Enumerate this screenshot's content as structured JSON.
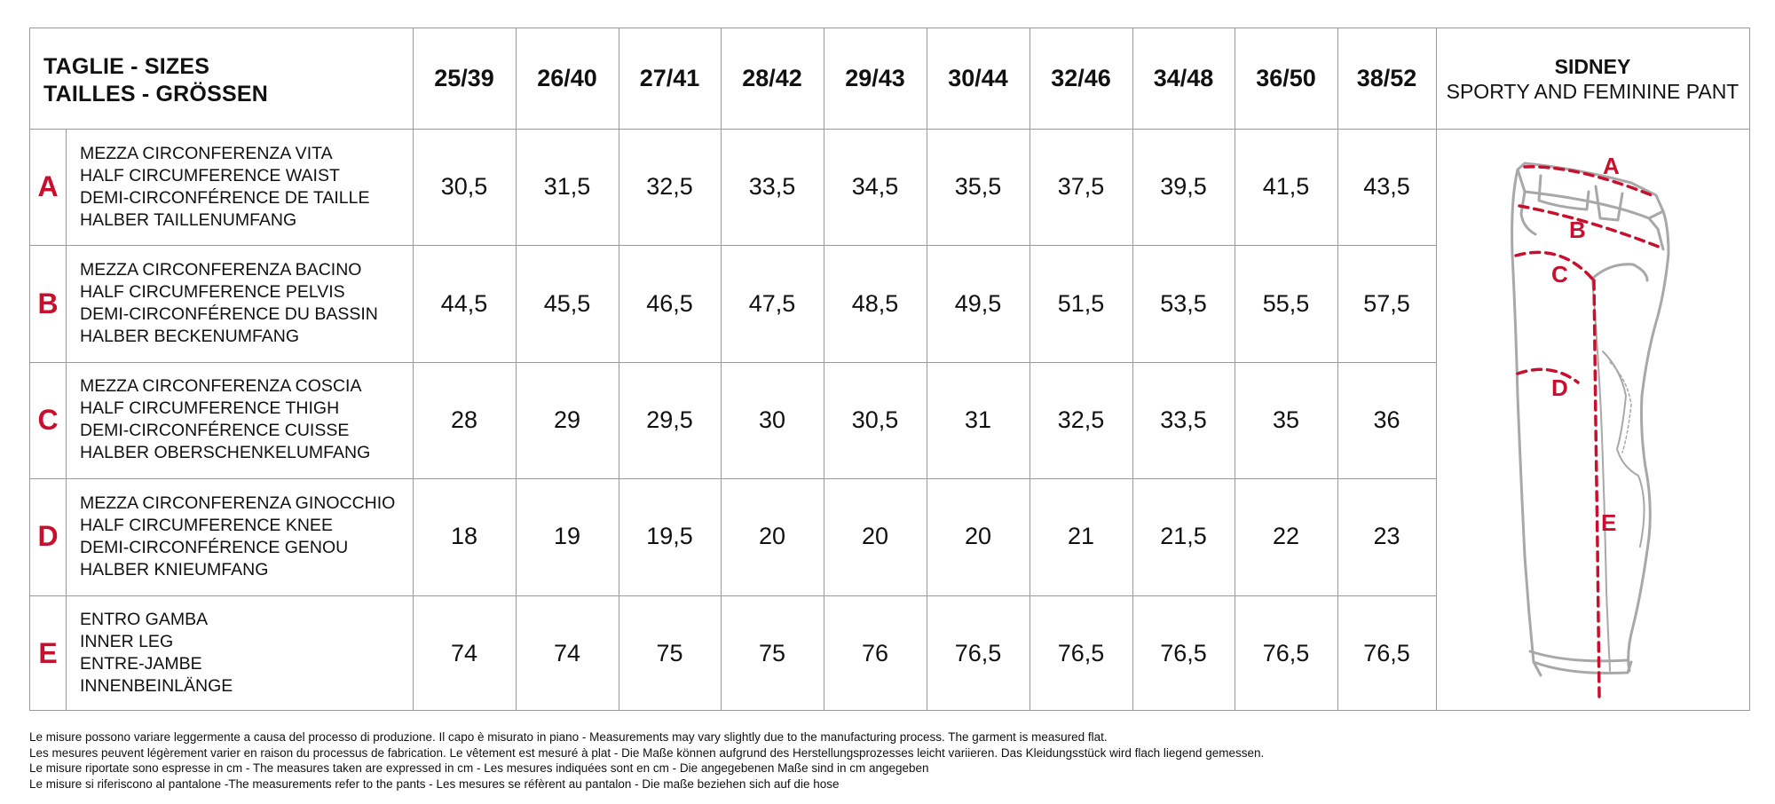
{
  "header": {
    "title_line1": "TAGLIE - SIZES",
    "title_line2": "TAILLES - GRÖSSEN",
    "sizes": [
      "25/39",
      "26/40",
      "27/41",
      "28/42",
      "29/43",
      "30/44",
      "32/46",
      "34/48",
      "36/50",
      "38/52"
    ],
    "model_name": "SIDNEY",
    "model_desc": "SPORTY AND FEMININE PANT"
  },
  "rows": [
    {
      "letter": "A",
      "labels": [
        "MEZZA CIRCONFERENZA VITA",
        "HALF CIRCUMFERENCE WAIST",
        "DEMI-CIRCONFÉRENCE DE TAILLE",
        "HALBER TAILLENUMFANG"
      ],
      "values": [
        "30,5",
        "31,5",
        "32,5",
        "33,5",
        "34,5",
        "35,5",
        "37,5",
        "39,5",
        "41,5",
        "43,5"
      ]
    },
    {
      "letter": "B",
      "labels": [
        "MEZZA CIRCONFERENZA BACINO",
        "HALF CIRCUMFERENCE PELVIS",
        "DEMI-CIRCONFÉRENCE DU BASSIN",
        "HALBER BECKENUMFANG"
      ],
      "values": [
        "44,5",
        "45,5",
        "46,5",
        "47,5",
        "48,5",
        "49,5",
        "51,5",
        "53,5",
        "55,5",
        "57,5"
      ]
    },
    {
      "letter": "C",
      "labels": [
        "MEZZA CIRCONFERENZA COSCIA",
        "HALF CIRCUMFERENCE THIGH",
        "DEMI-CIRCONFÉRENCE CUISSE",
        "HALBER OBERSCHENKELUMFANG"
      ],
      "values": [
        "28",
        "29",
        "29,5",
        "30",
        "30,5",
        "31",
        "32,5",
        "33,5",
        "35",
        "36"
      ]
    },
    {
      "letter": "D",
      "labels": [
        "MEZZA CIRCONFERENZA GINOCCHIO",
        "HALF CIRCUMFERENCE KNEE",
        "DEMI-CIRCONFÉRENCE GENOU",
        "HALBER KNIEUMFANG"
      ],
      "values": [
        "18",
        "19",
        "19,5",
        "20",
        "20",
        "20",
        "21",
        "21,5",
        "22",
        "23"
      ]
    },
    {
      "letter": "E",
      "labels": [
        "ENTRO GAMBA",
        "INNER LEG",
        "ENTRE-JAMBE",
        "INNENBEINLÄNGE"
      ],
      "values": [
        "74",
        "74",
        "75",
        "75",
        "76",
        "76,5",
        "76,5",
        "76,5",
        "76,5",
        "76,5"
      ]
    }
  ],
  "illustration": {
    "icon": "pant-diagram-icon",
    "markers": [
      "A",
      "B",
      "C",
      "D",
      "E"
    ],
    "accent_color": "#c8102e",
    "outline_color": "#a8a8a8"
  },
  "notes": [
    "Le misure possono variare leggermente a causa del processo di produzione. Il capo è misurato in piano - Measurements may vary slightly due to the manufacturing process. The garment is measured flat.",
    "Les mesures peuvent légèrement varier en raison du processus de fabrication. Le vêtement est mesuré à plat - Die Maße können aufgrund des Herstellungsprozesses leicht variieren. Das Kleidungsstück wird flach liegend gemessen.",
    "Le misure riportate sono espresse in cm - The measures taken are expressed in cm - Les mesures indiquées sont en cm - Die angegebenen Maße sind in cm angegeben",
    "Le misure si riferiscono al pantalone -The measurements refer to the pants - Les mesures se réfèrent au pantalon - Die maße beziehen sich auf die hose"
  ]
}
